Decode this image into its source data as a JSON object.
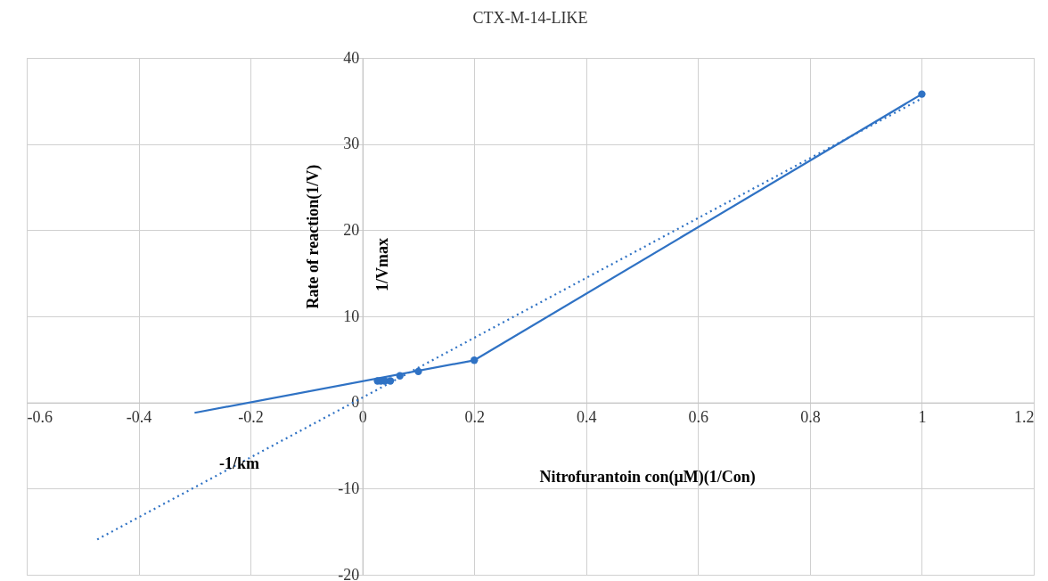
{
  "chart_data": {
    "type": "scatter",
    "title": "CTX-M-14-LIKE",
    "xlabel": "Nitrofurantoin con(μM)(1/Con)",
    "ylabel": "Rate of reaction(1/V)",
    "xlim": [
      -0.6,
      1.2
    ],
    "xticks": [
      -0.6,
      -0.4,
      -0.2,
      0,
      0.2,
      0.4,
      0.6,
      0.8,
      1,
      1.2
    ],
    "ylim": [
      -20,
      40
    ],
    "yticks": [
      -20,
      -10,
      0,
      10,
      20,
      30,
      40
    ],
    "grid": true,
    "series": [
      {
        "type": "line",
        "color": "#2f72c4",
        "x": [
          -0.3,
          0.2,
          1
        ],
        "values": [
          -1.2,
          4.9,
          35.8
        ],
        "line_style": "solid",
        "marker": "none"
      },
      {
        "type": "line",
        "color": "#2f72c4",
        "x": [
          -0.474,
          1
        ],
        "values": [
          -15.9,
          35.3
        ],
        "line_style": "dotted",
        "marker": "none"
      },
      {
        "color": "#2f72c4",
        "x": [
          0.027,
          0.033,
          0.04,
          0.05,
          0.067,
          0.1,
          0.2,
          1
        ],
        "values": [
          2.5,
          2.5,
          2.5,
          2.5,
          3.1,
          3.6,
          4.9,
          35.8
        ],
        "marker": "circle"
      }
    ],
    "annotations": [
      "1/Vmax",
      "-1/km"
    ]
  }
}
